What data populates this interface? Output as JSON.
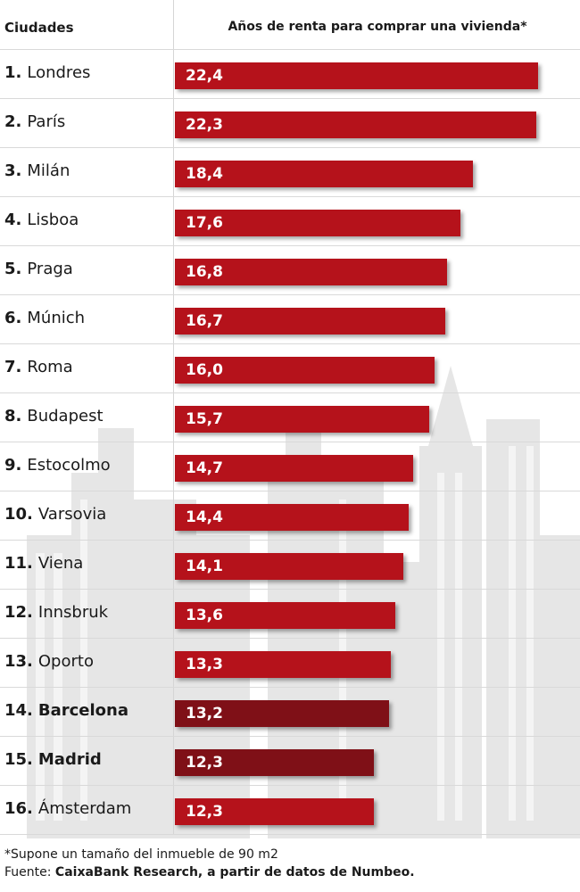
{
  "header": {
    "col_cities": "Ciudades",
    "col_metric": "Años de renta para comprar una vivienda*"
  },
  "chart_data": {
    "type": "bar",
    "orientation": "horizontal",
    "categories": [
      "Londres",
      "París",
      "Milán",
      "Lisboa",
      "Praga",
      "Múnich",
      "Roma",
      "Budapest",
      "Estocolmo",
      "Varsovia",
      "Viena",
      "Innsbruk",
      "Oporto",
      "Barcelona",
      "Madrid",
      "Ámsterdam"
    ],
    "ranks": [
      "1.",
      "2.",
      "3.",
      "4.",
      "5.",
      "6.",
      "7.",
      "8.",
      "9.",
      "10.",
      "11.",
      "12.",
      "13.",
      "14.",
      "15.",
      "16."
    ],
    "values": [
      22.4,
      22.3,
      18.4,
      17.6,
      16.8,
      16.7,
      16.0,
      15.7,
      14.7,
      14.4,
      14.1,
      13.6,
      13.3,
      13.2,
      12.3,
      12.3
    ],
    "value_labels": [
      "22,4",
      "22,3",
      "18,4",
      "17,6",
      "16,8",
      "16,7",
      "16,0",
      "15,7",
      "14,7",
      "14,4",
      "14,1",
      "13,6",
      "13,3",
      "13,2",
      "12,3",
      "12,3"
    ],
    "highlighted": [
      "Barcelona",
      "Madrid"
    ],
    "xlim": [
      0,
      22.4
    ],
    "grid": false,
    "colors": {
      "bar": "#b5121b",
      "bar_highlight": "#7f1017"
    }
  },
  "footer": {
    "note": "*Supone un tamaño del inmueble de 90 m2",
    "source_prefix": "Fuente: ",
    "source": "CaixaBank Research, a partir de datos de Numbeo."
  }
}
